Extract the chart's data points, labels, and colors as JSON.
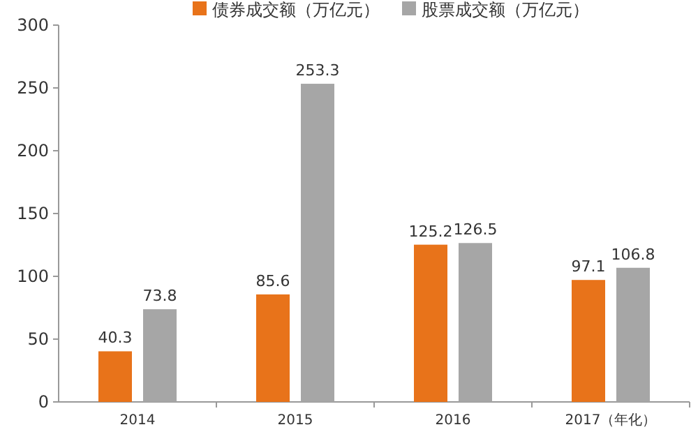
{
  "chart_data": {
    "type": "bar",
    "categories": [
      "2014",
      "2015",
      "2016",
      "2017（年化）"
    ],
    "series": [
      {
        "name": "债券成交额（万亿元）",
        "color": "#e8731a",
        "values": [
          40.3,
          85.6,
          125.2,
          97.1
        ]
      },
      {
        "name": "股票成交额（万亿元）",
        "color": "#a6a6a6",
        "values": [
          73.8,
          253.3,
          126.5,
          106.8
        ]
      }
    ],
    "ylim": [
      0,
      300
    ],
    "yticks": [
      0,
      50,
      100,
      150,
      200,
      250,
      300
    ],
    "data_labels": true,
    "legend": "top",
    "grid": false
  }
}
